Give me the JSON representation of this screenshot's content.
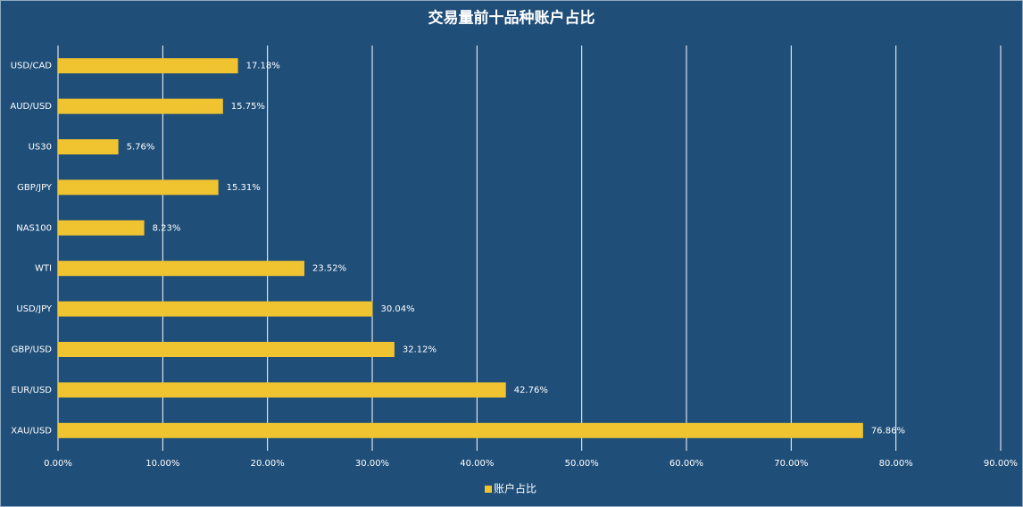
{
  "chart_data": {
    "type": "hbar",
    "title": "交易量前十品种账户占比",
    "categories": [
      "USD/CAD",
      "AUD/USD",
      "US30",
      "GBP/JPY",
      "NAS100",
      "WTI",
      "USD/JPY",
      "GBP/USD",
      "EUR/USD",
      "XAU/USD"
    ],
    "series": [
      {
        "name": "账户占比",
        "color": "#f0c431",
        "values": [
          17.18,
          15.75,
          5.76,
          15.31,
          8.23,
          23.52,
          30.04,
          32.12,
          42.76,
          76.86
        ],
        "value_labels": [
          "17.18%",
          "15.75%",
          "5.76%",
          "15.31%",
          "8.23%",
          "23.52%",
          "30.04%",
          "32.12%",
          "42.76%",
          "76.86%"
        ]
      }
    ],
    "xlim": [
      0,
      90
    ],
    "xticks": [
      {
        "value": 0,
        "label": "0.00%"
      },
      {
        "value": 10,
        "label": "10.00%"
      },
      {
        "value": 20,
        "label": "20.00%"
      },
      {
        "value": 30,
        "label": "30.00%"
      },
      {
        "value": 40,
        "label": "40.00%"
      },
      {
        "value": 50,
        "label": "50.00%"
      },
      {
        "value": 60,
        "label": "60.00%"
      },
      {
        "value": 70,
        "label": "70.00%"
      },
      {
        "value": 80,
        "label": "80.00%"
      },
      {
        "value": 90,
        "label": "90.00%"
      }
    ],
    "grid": true,
    "legend": "bottom"
  }
}
